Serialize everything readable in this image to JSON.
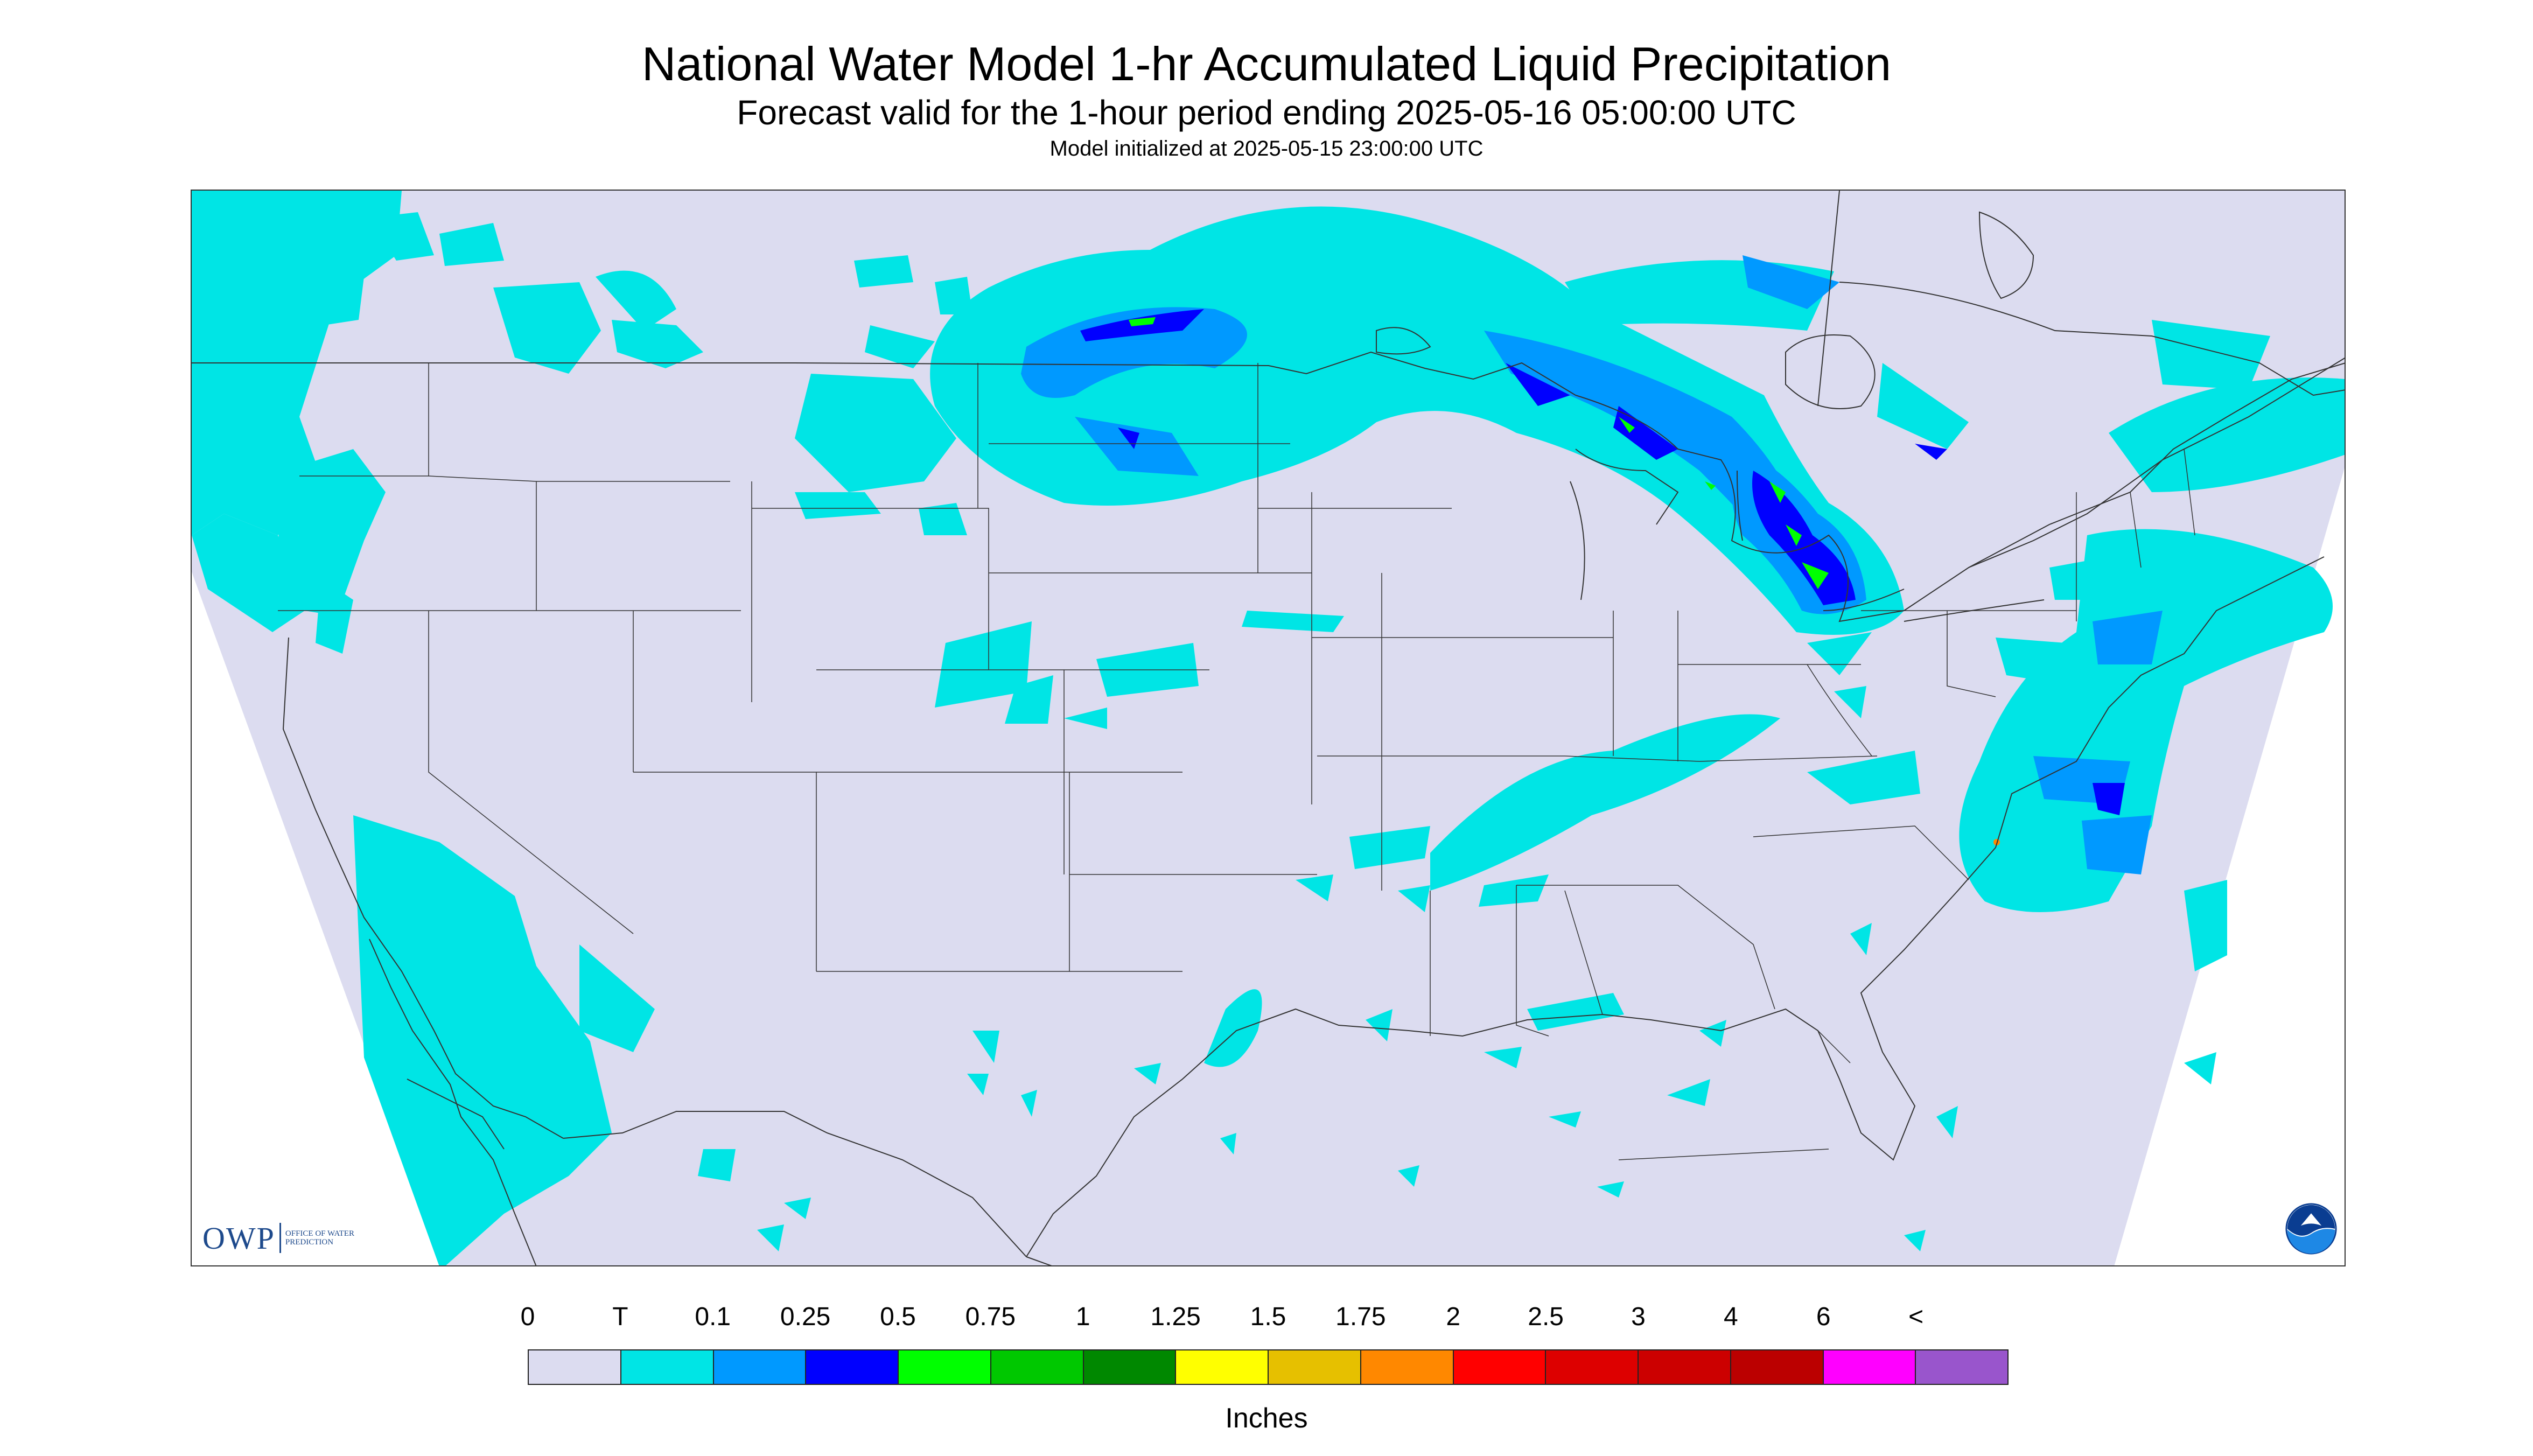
{
  "header": {
    "title": "National Water Model 1-hr Accumulated Liquid Precipitation",
    "subtitle": "Forecast valid for the 1-hour period ending 2025-05-16 05:00:00 UTC",
    "init_line": "Model initialized at 2025-05-15 23:00:00 UTC"
  },
  "map": {
    "region": "CONUS",
    "background_color": "#dcdcf0",
    "outside_color": "#ffffff",
    "boundary_color": "#333333",
    "precip_layers": [
      {
        "category": "T",
        "color": "#00e5e5"
      },
      {
        "category": "0.1",
        "color": "#0099ff"
      },
      {
        "category": "0.25",
        "color": "#0000ff"
      },
      {
        "category": "0.5",
        "color": "#00ff00"
      },
      {
        "category": "0.75",
        "color": "#00c800"
      },
      {
        "category": "1.25",
        "color": "#ffff00"
      },
      {
        "category": "1.75",
        "color": "#ff8800"
      }
    ]
  },
  "logos": {
    "owp_mark": "OWP",
    "owp_text": "OFFICE OF WATER PREDICTION",
    "noaa_icon": "noaa-icon"
  },
  "legend": {
    "labels": [
      "0",
      "T",
      "0.1",
      "0.25",
      "0.5",
      "0.75",
      "1",
      "1.25",
      "1.5",
      "1.75",
      "2",
      "2.5",
      "3",
      "4",
      "6",
      "<"
    ],
    "colors": [
      "#dcdcf0",
      "#00e5e5",
      "#0099ff",
      "#0000ff",
      "#00ff00",
      "#00c800",
      "#008800",
      "#ffff00",
      "#e6c000",
      "#ff8800",
      "#ff0000",
      "#dd0000",
      "#cc0000",
      "#bb0000",
      "#ff00ff",
      "#9955cc"
    ],
    "unit": "Inches"
  }
}
